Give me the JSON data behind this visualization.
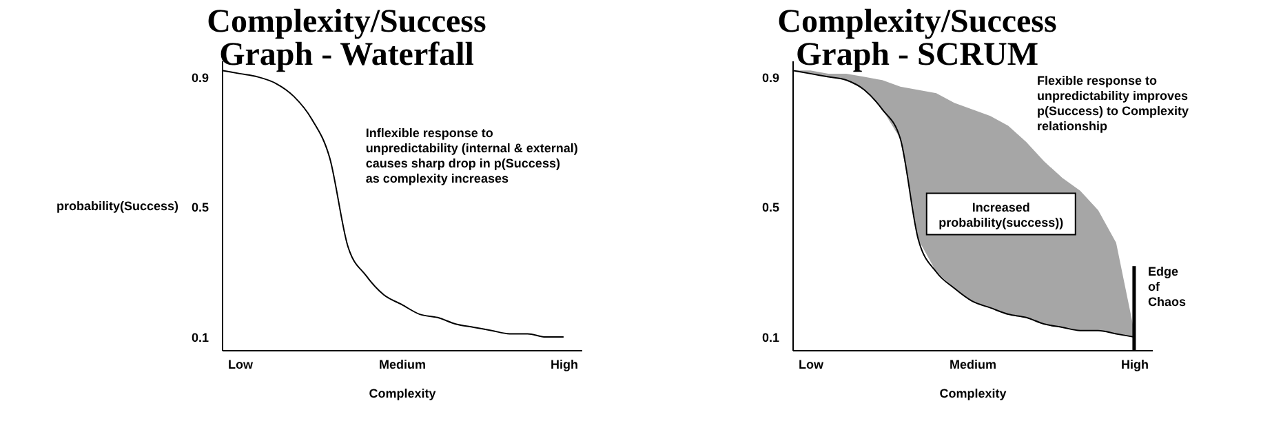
{
  "chart_data": [
    {
      "type": "line",
      "title": "Complexity/Success\nGraph - Waterfall",
      "xlabel": "Complexity",
      "ylabel": "probability(Success)",
      "categories": [
        null,
        "Low",
        null,
        null,
        null,
        null,
        null,
        null,
        null,
        null,
        "Medium",
        null,
        null,
        null,
        null,
        null,
        null,
        null,
        null,
        "High",
        null
      ],
      "series": [
        {
          "color": "#000000",
          "values": [
            0.92,
            0.91,
            0.9,
            0.88,
            0.84,
            0.77,
            0.65,
            0.38,
            0.29,
            0.23,
            0.2,
            0.17,
            0.16,
            0.14,
            0.13,
            0.12,
            0.11,
            0.11,
            0.1,
            0.1,
            null
          ]
        }
      ],
      "ylim": [
        0.06,
        0.95
      ],
      "yticks": [
        0.1,
        0.5,
        0.9
      ],
      "annotations": [
        "Inflexible response to\nunpredictability (internal & external)\ncauses sharp drop in p(Success)\nas complexity increases"
      ]
    },
    {
      "type": "line",
      "title": "Complexity/Success\nGraph - SCRUM",
      "xlabel": "Complexity",
      "categories": [
        null,
        "Low",
        null,
        null,
        null,
        null,
        null,
        null,
        null,
        null,
        "Medium",
        null,
        null,
        null,
        null,
        null,
        null,
        null,
        null,
        "High",
        null
      ],
      "series": [
        {
          "color": "#000000",
          "values": [
            0.92,
            0.91,
            0.9,
            0.89,
            0.86,
            0.8,
            0.71,
            0.4,
            0.3,
            0.25,
            0.21,
            0.19,
            0.17,
            0.16,
            0.14,
            0.13,
            0.12,
            0.12,
            0.11,
            0.1,
            null
          ],
          "lower": [
            0.92,
            0.91,
            0.9,
            0.89,
            0.86,
            0.8,
            0.71,
            0.4,
            0.3,
            0.25,
            0.21,
            0.19,
            0.17,
            0.16,
            0.14,
            0.13,
            0.12,
            0.12,
            0.11,
            0.1,
            null
          ],
          "upper": [
            0.92,
            0.92,
            0.91,
            0.91,
            0.9,
            0.89,
            0.87,
            0.86,
            0.85,
            0.82,
            0.8,
            0.78,
            0.75,
            0.7,
            0.64,
            0.59,
            0.55,
            0.49,
            0.39,
            0.12,
            null
          ]
        }
      ],
      "ylim": [
        0.06,
        0.95
      ],
      "yticks": [
        0.1,
        0.5,
        0.9
      ],
      "ref_lines": [
        {
          "axis": "x",
          "value": "High",
          "label": "Edge\nof\nChaos"
        }
      ],
      "annotations": [
        "Flexible response to\nunpredictability improves\np(Success) to Complexity\nrelationship",
        "Increased\nprobability(success))"
      ]
    }
  ]
}
